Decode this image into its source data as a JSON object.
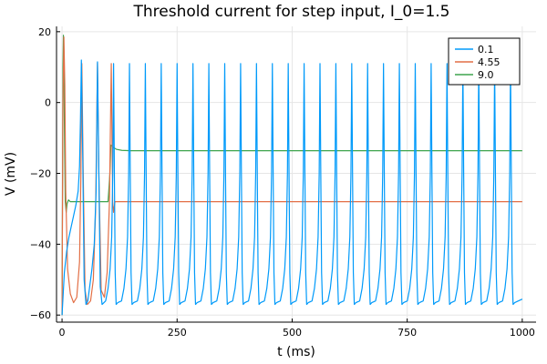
{
  "chart_data": {
    "type": "line",
    "title": "Threshold current for step input, I_0=1.5",
    "xlabel": "t (ms)",
    "ylabel": "V (mV)",
    "xlim": [
      -12,
      1030
    ],
    "ylim": [
      -62,
      21.5
    ],
    "xticks": [
      0,
      250,
      500,
      750,
      1000
    ],
    "yticks": [
      -60,
      -40,
      -20,
      0,
      20
    ],
    "grid": true,
    "legend_position": "top-right",
    "series": [
      {
        "name": "0.1",
        "color": "#009AFA",
        "points": [
          [
            0,
            -60
          ],
          [
            5,
            -48
          ],
          [
            10,
            -42
          ],
          [
            15,
            -38
          ],
          [
            20,
            -35
          ],
          [
            25,
            -32
          ],
          [
            30,
            -29
          ],
          [
            35,
            -25
          ],
          [
            38,
            -18
          ],
          [
            40,
            -5
          ],
          [
            42,
            12
          ],
          [
            45,
            -15
          ],
          [
            48,
            -50
          ],
          [
            52,
            -57
          ],
          [
            56,
            -56
          ],
          [
            60,
            -52
          ],
          [
            65,
            -47
          ],
          [
            70,
            -40
          ],
          [
            74,
            -25
          ],
          [
            77,
            11.5
          ],
          [
            80,
            -20
          ],
          [
            83,
            -52
          ],
          [
            87,
            -57
          ]
        ]
      },
      {
        "name": "4.55",
        "color": "#E26F46",
        "points": [
          [
            0,
            -60
          ],
          [
            2,
            0
          ],
          [
            4,
            18.5
          ],
          [
            6,
            5
          ],
          [
            8,
            -25
          ],
          [
            12,
            -47
          ],
          [
            18,
            -54
          ],
          [
            25,
            -56.5
          ],
          [
            32,
            -55
          ],
          [
            38,
            -45
          ],
          [
            41,
            -20
          ],
          [
            43,
            11
          ],
          [
            46,
            -20
          ],
          [
            50,
            -53
          ],
          [
            55,
            -57
          ],
          [
            62,
            -56
          ],
          [
            68,
            -50
          ],
          [
            73,
            -30
          ],
          [
            77,
            11.2
          ],
          [
            80,
            -20
          ],
          [
            85,
            -53
          ],
          [
            92,
            -55
          ],
          [
            98,
            -48
          ],
          [
            103,
            -28
          ],
          [
            107,
            11
          ],
          [
            110,
            -28
          ],
          [
            112,
            -31
          ],
          [
            115,
            -28
          ],
          [
            120,
            -28
          ],
          [
            1000,
            -28
          ]
        ]
      },
      {
        "name": "9.0",
        "color": "#3DA44D",
        "points": [
          [
            0,
            -60
          ],
          [
            2,
            10
          ],
          [
            3,
            19
          ],
          [
            5,
            -5
          ],
          [
            7,
            -28
          ],
          [
            9,
            -31
          ],
          [
            11,
            -28.5
          ],
          [
            14,
            -27.5
          ],
          [
            18,
            -28
          ],
          [
            100,
            -28
          ],
          [
            104,
            -20
          ],
          [
            106,
            -12
          ],
          [
            110,
            -12.5
          ],
          [
            118,
            -13.2
          ],
          [
            130,
            -13.5
          ],
          [
            150,
            -13.6
          ],
          [
            1000,
            -13.6
          ]
        ]
      }
    ],
    "spikes": {
      "series": "0.1",
      "start": 112,
      "period": 34.5,
      "peak": 11,
      "trough": -57,
      "end": 1000
    }
  }
}
